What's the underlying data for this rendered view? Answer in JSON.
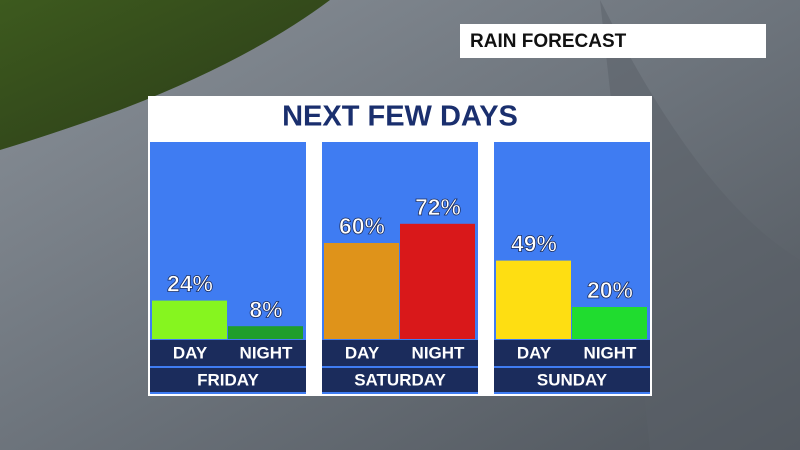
{
  "chart_data": {
    "type": "bar",
    "label": "RAIN FORECAST",
    "title": "NEXT FEW DAYS",
    "groups": [
      {
        "name": "FRIDAY",
        "categories": [
          "DAY",
          "NIGHT"
        ],
        "values": [
          24,
          8
        ],
        "value_labels": [
          "24%",
          "8%"
        ],
        "colors": [
          "#86f51f",
          "#1f9e2c"
        ]
      },
      {
        "name": "SATURDAY",
        "categories": [
          "DAY",
          "NIGHT"
        ],
        "values": [
          60,
          72
        ],
        "value_labels": [
          "60%",
          "72%"
        ],
        "colors": [
          "#df931a",
          "#d9181a"
        ]
      },
      {
        "name": "SUNDAY",
        "categories": [
          "DAY",
          "NIGHT"
        ],
        "values": [
          49,
          20
        ],
        "value_labels": [
          "49%",
          "20%"
        ],
        "colors": [
          "#fede12",
          "#20dc2f"
        ]
      }
    ]
  }
}
